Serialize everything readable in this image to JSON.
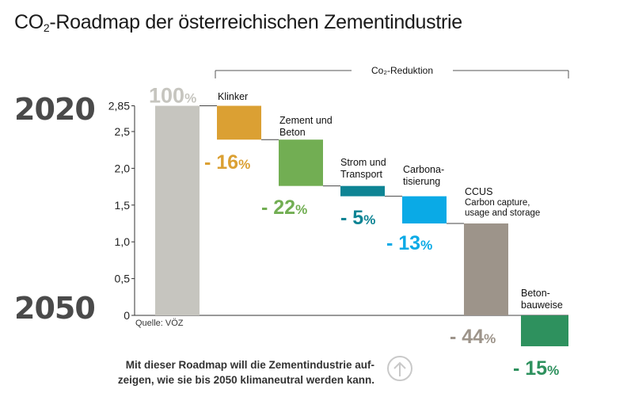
{
  "title": {
    "pre": "CO",
    "sub": "2",
    "post": "-Roadmap der österreichischen Zementindustrie"
  },
  "years": {
    "start": "2020",
    "end": "2050"
  },
  "reduction_label": "Co₂-Reduktion",
  "source": "Quelle: VÖZ",
  "footer": {
    "line1": "Mit dieser Roadmap will die Zementindustrie auf-",
    "line2": "zeigen, wie sie bis 2050 klimaneutral werden kann."
  },
  "colors": {
    "baseline": "#c6c5bf",
    "klinker": "#dba033",
    "zement": "#72ae53",
    "strom": "#0e8494",
    "carbonatisierung": "#0aaae6",
    "ccus": "#9d948a",
    "beton": "#2e915e",
    "axis": "#333333",
    "bracket": "#555555"
  },
  "chart_data": {
    "type": "waterfall",
    "title": "CO2-Roadmap der österreichischen Zementindustrie",
    "ylabel": "",
    "ylim": [
      0,
      2.85
    ],
    "yticks": [
      0,
      0.5,
      1.0,
      1.5,
      2.0,
      2.5,
      2.85
    ],
    "ytick_labels": [
      "0",
      "0,5",
      "1,0",
      "1,5",
      "2,0",
      "2,5",
      "2,85"
    ],
    "baseline": {
      "name": "2020",
      "value": 2.85,
      "label_num": "100",
      "label_pct": "%"
    },
    "steps": [
      {
        "key": "klinker",
        "name_lines": [
          "Klinker"
        ],
        "top": 2.85,
        "bottom": 2.39,
        "label_num": "- 16",
        "label_pct": "%"
      },
      {
        "key": "zement",
        "name_lines": [
          "Zement und",
          "Beton"
        ],
        "top": 2.39,
        "bottom": 1.76,
        "label_num": "- 22",
        "label_pct": "%"
      },
      {
        "key": "strom",
        "name_lines": [
          "Strom und",
          "Transport"
        ],
        "top": 1.76,
        "bottom": 1.62,
        "label_num": "- 5",
        "label_pct": "%"
      },
      {
        "key": "carbonatisierung",
        "name_lines": [
          "Carbona-",
          "tisierung"
        ],
        "top": 1.62,
        "bottom": 1.25,
        "label_num": "- 13",
        "label_pct": "%"
      },
      {
        "key": "ccus",
        "name_lines": [
          "CCUS",
          "Carbon capture,",
          "usage and storage"
        ],
        "top": 1.25,
        "bottom": 0.0,
        "label_num": "- 44",
        "label_pct": "%"
      },
      {
        "key": "beton",
        "name_lines": [
          "Beton-",
          "bauweise"
        ],
        "top": 0.0,
        "bottom": -0.42,
        "label_num": "- 15",
        "label_pct": "%"
      }
    ]
  }
}
